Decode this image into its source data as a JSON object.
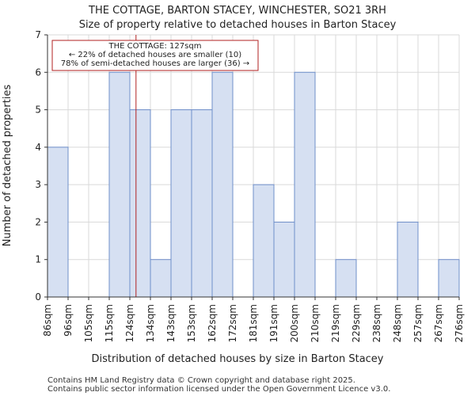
{
  "chart_data": {
    "type": "bar",
    "title": "THE COTTAGE, BARTON STACEY, WINCHESTER, SO21 3RH",
    "subtitle": "Size of property relative to detached houses in Barton Stacey",
    "xlabel": "Distribution of detached houses by size in Barton Stacey",
    "ylabel": "Number of detached properties",
    "x_tick_labels": [
      "86sqm",
      "96sqm",
      "105sqm",
      "115sqm",
      "124sqm",
      "134sqm",
      "143sqm",
      "153sqm",
      "162sqm",
      "172sqm",
      "181sqm",
      "191sqm",
      "200sqm",
      "210sqm",
      "219sqm",
      "229sqm",
      "238sqm",
      "248sqm",
      "257sqm",
      "267sqm",
      "276sqm"
    ],
    "values": [
      4,
      0,
      0,
      6,
      5,
      1,
      5,
      5,
      6,
      0,
      3,
      2,
      6,
      0,
      1,
      0,
      0,
      2,
      0,
      1
    ],
    "ylim": [
      0,
      7
    ],
    "y_ticks": [
      0,
      1,
      2,
      3,
      4,
      5,
      6,
      7
    ],
    "grid": true,
    "bar_fill": "#d6e0f2",
    "bar_stroke": "#6f8fca",
    "marker": {
      "value_sqm": 127,
      "color": "#b22222"
    },
    "annotation": {
      "line1": "THE COTTAGE: 127sqm",
      "line2": "← 22% of detached houses are smaller (10)",
      "line3": "78% of semi-detached houses are larger (36) →",
      "border_color": "#b22222"
    }
  },
  "footer": {
    "line1": "Contains HM Land Registry data © Crown copyright and database right 2025.",
    "line2": "Contains public sector information licensed under the Open Government Licence v3.0."
  }
}
